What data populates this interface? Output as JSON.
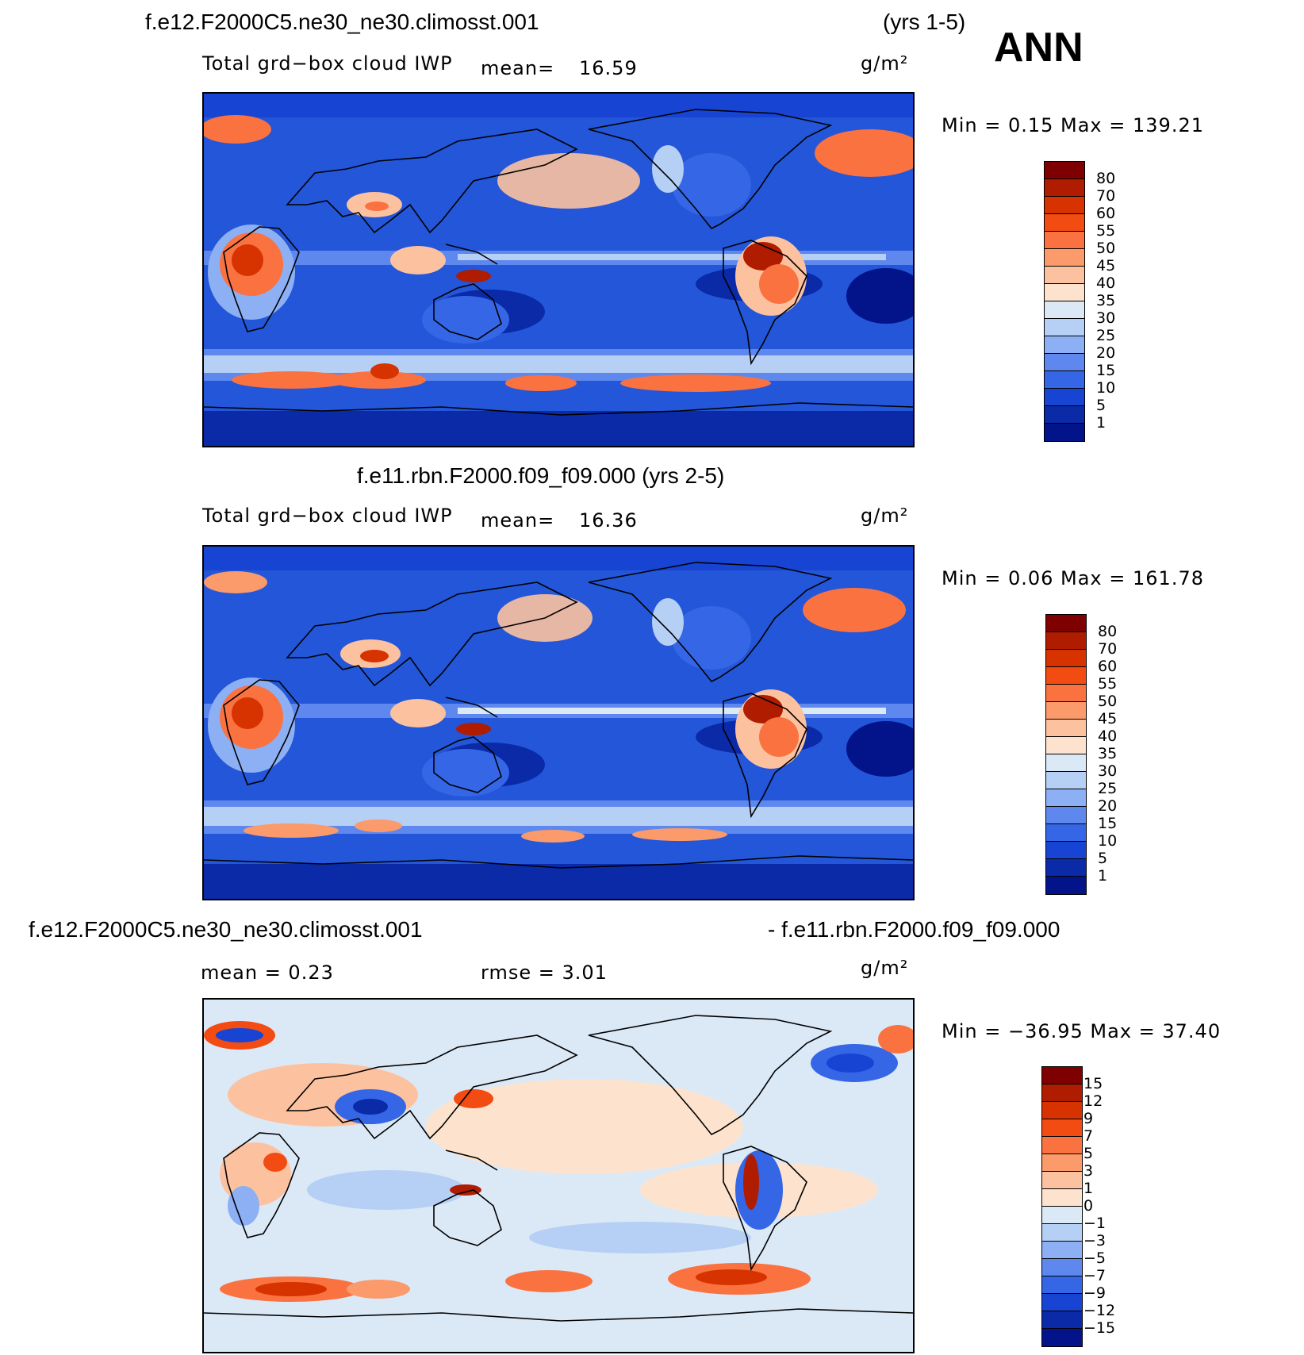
{
  "header": {
    "case_top": "f.e12.F2000C5.ne30_ne30.climosst.001",
    "years_top": "(yrs 1-5)",
    "season": "ANN"
  },
  "panels": [
    {
      "variable": "Total grd−box cloud IWP",
      "mean_label": "mean=",
      "mean_value": "16.59",
      "units": "g/m²",
      "minmax": "Min =    0.15 Max = 139.21",
      "colorbar_labels": [
        "80",
        "70",
        "60",
        "55",
        "50",
        "45",
        "40",
        "35",
        "30",
        "25",
        "20",
        "15",
        "10",
        "5",
        "1"
      ],
      "colors": [
        "#7f0000",
        "#b01c00",
        "#d63300",
        "#f24c13",
        "#fa7240",
        "#fb9a6a",
        "#fcc2a0",
        "#fde3cd",
        "#dbe9f7",
        "#b5cff5",
        "#8cb0f3",
        "#5f88ee",
        "#3566e6",
        "#1844d4",
        "#0a2aa8",
        "#03138a"
      ]
    },
    {
      "case_title": "f.e11.rbn.F2000.f09_f09.000 (yrs 2-5)",
      "variable": "Total grd−box cloud IWP",
      "mean_label": "mean=",
      "mean_value": "16.36",
      "units": "g/m²",
      "minmax": "Min =    0.06 Max = 161.78",
      "colorbar_labels": [
        "80",
        "70",
        "60",
        "55",
        "50",
        "45",
        "40",
        "35",
        "30",
        "25",
        "20",
        "15",
        "10",
        "5",
        "1"
      ],
      "colors": [
        "#7f0000",
        "#b01c00",
        "#d63300",
        "#f24c13",
        "#fa7240",
        "#fb9a6a",
        "#fcc2a0",
        "#fde3cd",
        "#dbe9f7",
        "#b5cff5",
        "#8cb0f3",
        "#5f88ee",
        "#3566e6",
        "#1844d4",
        "#0a2aa8",
        "#03138a"
      ]
    },
    {
      "case_left": "f.e12.F2000C5.ne30_ne30.climosst.001",
      "case_right": "- f.e11.rbn.F2000.f09_f09.000",
      "mean_text": "mean =    0.23",
      "rmse_text": "rmse =    3.01",
      "units": "g/m²",
      "minmax": "Min = −36.95 Max =   37.40",
      "colorbar_labels": [
        "15",
        "12",
        "9",
        "7",
        "5",
        "3",
        "1",
        "0",
        "−1",
        "−3",
        "−5",
        "−7",
        "−9",
        "−12",
        "−15"
      ],
      "colors": [
        "#7f0000",
        "#b01c00",
        "#d63300",
        "#f24c13",
        "#fa7240",
        "#fb9a6a",
        "#fcc2a0",
        "#fde3cd",
        "#dbe9f7",
        "#b5cff5",
        "#8cb0f3",
        "#5f88ee",
        "#3566e6",
        "#1844d4",
        "#0a2aa8",
        "#03138a"
      ]
    }
  ],
  "map_style": {
    "ocean_base_abs": "#2356d8",
    "diff_base": "#dbe9f7",
    "coast_color": "#000000"
  }
}
